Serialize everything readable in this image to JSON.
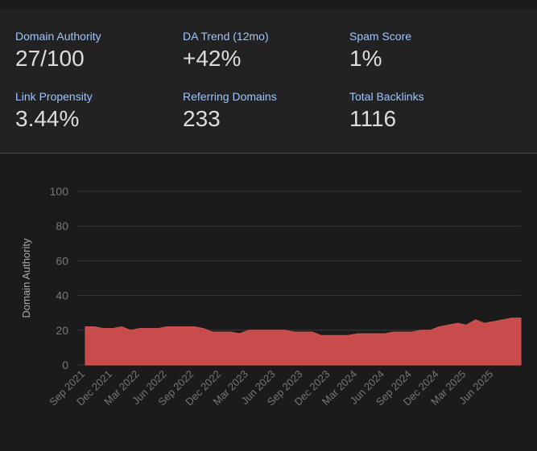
{
  "stats": [
    {
      "label": "Domain Authority",
      "value": "27/100"
    },
    {
      "label": "DA Trend (12mo)",
      "value": "+42%"
    },
    {
      "label": "Spam Score",
      "value": "1%"
    },
    {
      "label": "Link Propensity",
      "value": "3.44%"
    },
    {
      "label": "Referring Domains",
      "value": "233"
    },
    {
      "label": "Total Backlinks",
      "value": "1116"
    }
  ],
  "colors": {
    "label": "#9ec5ff",
    "value": "#dddddd",
    "area_fill": "#c94c4c",
    "area_line": "#d65555",
    "grid": "#3a3a3a",
    "tick": "#777777"
  },
  "chart_data": {
    "type": "area",
    "ylabel": "Domain Authority",
    "xlabel": "",
    "ylim": [
      0,
      100
    ],
    "yticks": [
      0,
      20,
      40,
      60,
      80,
      100
    ],
    "grid": true,
    "legend": "none",
    "x_tick_labels": [
      "Sep 2021",
      "Dec 2021",
      "Mar 2022",
      "Jun 2022",
      "Sep 2022",
      "Dec 2022",
      "Mar 2023",
      "Jun 2023",
      "Sep 2023",
      "Dec 2023",
      "Mar 2024",
      "Jun 2024",
      "Sep 2024",
      "Dec 2024",
      "Mar 2025",
      "Jun 2025"
    ],
    "series": [
      {
        "x": [
          "2021-09",
          "2021-10",
          "2021-11",
          "2021-12",
          "2022-01",
          "2022-02",
          "2022-03",
          "2022-04",
          "2022-05",
          "2022-06",
          "2022-07",
          "2022-08",
          "2022-09",
          "2022-10",
          "2022-11",
          "2022-12",
          "2023-01",
          "2023-02",
          "2023-03",
          "2023-04",
          "2023-05",
          "2023-06",
          "2023-07",
          "2023-08",
          "2023-09",
          "2023-10",
          "2023-11",
          "2023-12",
          "2024-01",
          "2024-02",
          "2024-03",
          "2024-04",
          "2024-05",
          "2024-06",
          "2024-07",
          "2024-08",
          "2024-09",
          "2024-10",
          "2024-11",
          "2024-12",
          "2025-01",
          "2025-02",
          "2025-03",
          "2025-04",
          "2025-05",
          "2025-06",
          "2025-07",
          "2025-08",
          "2025-09"
        ],
        "values": [
          22,
          22,
          21,
          21,
          22,
          20,
          21,
          21,
          21,
          22,
          22,
          22,
          22,
          21,
          19,
          19,
          19,
          18,
          20,
          20,
          20,
          20,
          20,
          19,
          19,
          19,
          17,
          17,
          17,
          17,
          18,
          18,
          18,
          18,
          19,
          19,
          19,
          20,
          20,
          22,
          23,
          24,
          23,
          26,
          24,
          25,
          26,
          27,
          27
        ]
      }
    ]
  }
}
